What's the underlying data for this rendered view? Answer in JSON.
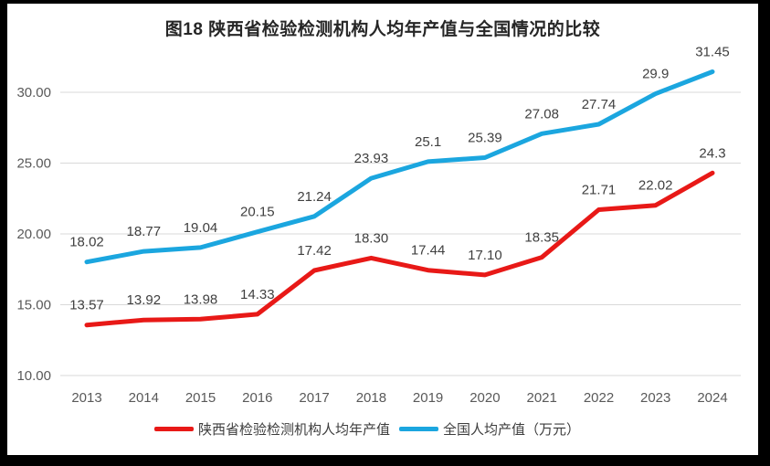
{
  "title": "图18 陕西省检验检测机构人均年产值与全国情况的比较",
  "chart_data": {
    "type": "line",
    "title": "图18 陕西省检验检测机构人均年产值与全国情况的比较",
    "categories": [
      "2013",
      "2014",
      "2015",
      "2016",
      "2017",
      "2018",
      "2019",
      "2020",
      "2021",
      "2022",
      "2023",
      "2024"
    ],
    "series": [
      {
        "name": "陕西省检验检测机构人均年产值",
        "color": "#e81917",
        "values": [
          13.57,
          13.92,
          13.98,
          14.33,
          17.42,
          18.3,
          17.44,
          17.1,
          18.35,
          21.71,
          22.02,
          24.3
        ],
        "labels": [
          "13.57",
          "13.92",
          "13.98",
          "14.33",
          "17.42",
          "18.30",
          "17.44",
          "17.10",
          "18.35",
          "21.71",
          "22.02",
          "24.3"
        ]
      },
      {
        "name": "全国人均产值（万元）",
        "color": "#1ba6df",
        "values": [
          18.02,
          18.77,
          19.04,
          20.15,
          21.24,
          23.93,
          25.1,
          25.39,
          27.08,
          27.74,
          29.9,
          31.45
        ],
        "labels": [
          "18.02",
          "18.77",
          "19.04",
          "20.15",
          "21.24",
          "23.93",
          "25.1",
          "25.39",
          "27.08",
          "27.74",
          "29.9",
          "31.45"
        ]
      }
    ],
    "xlabel": "",
    "ylabel": "",
    "ylim": [
      10,
      32.5
    ],
    "yticks": [
      {
        "value": 10,
        "label": "10.00"
      },
      {
        "value": 15,
        "label": "15.00"
      },
      {
        "value": 20,
        "label": "20.00"
      },
      {
        "value": 25,
        "label": "25.00"
      },
      {
        "value": 30,
        "label": "30.00"
      }
    ],
    "grid": true,
    "legend_position": "bottom",
    "colors": {
      "grid": "#d9d9d9",
      "axis_text": "#595959",
      "data_label": "#404040",
      "background": "#ffffff",
      "frame": "#000000"
    }
  }
}
